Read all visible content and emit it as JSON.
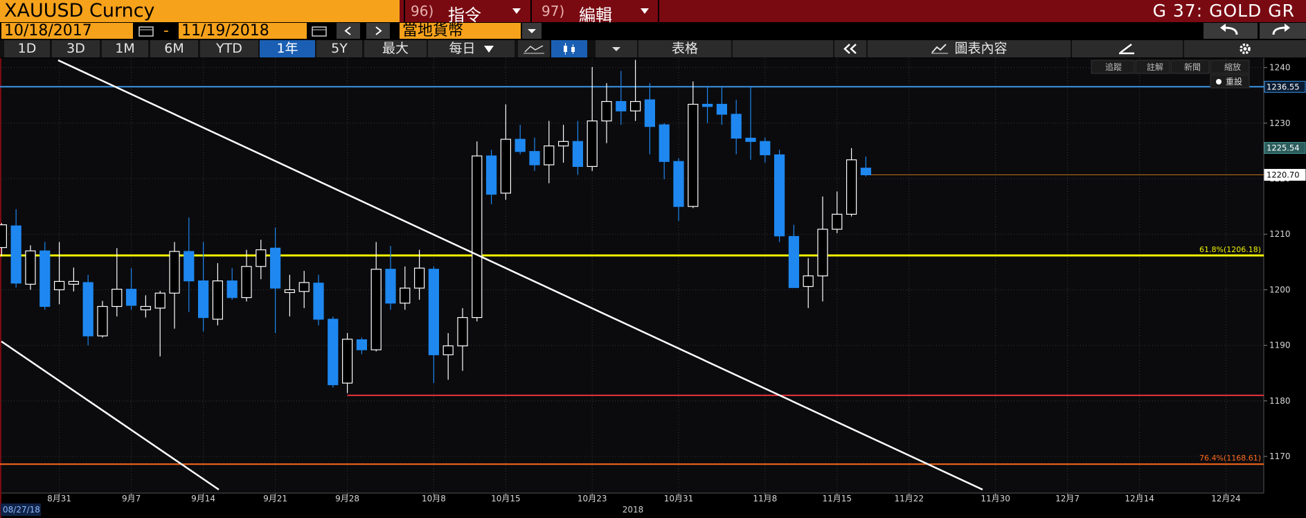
{
  "header": {
    "ticker": "XAUUSD Curncy",
    "menu": [
      {
        "number": "96)",
        "label": "指令"
      },
      {
        "number": "97)",
        "label": "編輯"
      }
    ],
    "title": "G 37: GOLD GR"
  },
  "range": {
    "start": "10/18/2017",
    "separator": "-",
    "end": "11/19/2018",
    "currency": "當地貨幣"
  },
  "periods": [
    "1D",
    "3D",
    "1M",
    "6M",
    "YTD",
    "1年",
    "5Y",
    "最大"
  ],
  "selected_period": 5,
  "frequency": "每日",
  "toolbar": {
    "table": "表格",
    "chart_content": "圖表內容"
  },
  "chart_tools": [
    "追蹤",
    "註解",
    "新聞",
    "縮放"
  ],
  "reset": "重設",
  "chart_data": {
    "type": "candlestick",
    "start_date": "08/27/18",
    "year_label": "2018",
    "categories": [
      null,
      null,
      null,
      null,
      "8月31",
      null,
      null,
      null,
      null,
      "9月7",
      null,
      null,
      null,
      null,
      "9月14",
      null,
      null,
      null,
      null,
      "9月21",
      null,
      null,
      null,
      null,
      "9月28",
      null,
      null,
      null,
      null,
      null,
      "10月8",
      null,
      null,
      null,
      null,
      "10月15",
      null,
      null,
      null,
      null,
      null,
      "10月23",
      null,
      null,
      null,
      null,
      null,
      "10月31",
      null,
      null,
      null,
      null,
      null,
      "11月8",
      null,
      null,
      null,
      null,
      "11月15",
      null,
      null,
      null,
      null,
      "11月22",
      null,
      null,
      null,
      null,
      null,
      "11月30",
      null,
      null,
      null,
      null,
      "12月7",
      null,
      null,
      null,
      null,
      "12月14",
      null,
      null,
      null,
      null,
      null,
      "12月24",
      null,
      null
    ],
    "open": [
      1207.6,
      1211.5,
      1201,
      1207,
      1200,
      1201,
      1201.3,
      1191.7,
      1197,
      1200.1,
      1196.4,
      1196.7,
      1199.4,
      1206.9,
      1201.6,
      1194.7,
      1201.6,
      1198.6,
      1204.2,
      1207.5,
      1199.5,
      1199.7,
      1201.2,
      1194.7,
      1183.2,
      1191,
      1189.2,
      1203.7,
      1197.6,
      1200.3,
      1203.7,
      1188.3,
      1189.9,
      1195,
      1224.1,
      1217.4,
      1227.1,
      1224.9,
      1222.5,
      1225.9,
      1226.7,
      1222.2,
      1230.4,
      1233.9,
      1232.2,
      1234.2,
      1229.7,
      1223.1,
      1215,
      1233.4,
      1233.4,
      1231.6,
      1227.3,
      1226.7,
      1224.3,
      1209.6,
      1200.6,
      1202.5,
      1210.9,
      1213.6,
      1221.9,
      null,
      null,
      null,
      null,
      null,
      null,
      null,
      null,
      null,
      null,
      null,
      null,
      null,
      null,
      null,
      null,
      null,
      null,
      null,
      null,
      null,
      null,
      null,
      null,
      null,
      null,
      null
    ],
    "high": [
      1212,
      1214.5,
      1208,
      1208.6,
      1208.6,
      1204,
      1202.7,
      1198,
      1207.5,
      1203.9,
      1199,
      1199.8,
      1208.6,
      1213,
      1208.6,
      1204.8,
      1203.9,
      1207.2,
      1209,
      1211.2,
      1202.7,
      1203.4,
      1202.7,
      1195.2,
      1192.2,
      1191.4,
      1208.6,
      1207.9,
      1204.2,
      1207.2,
      1204.2,
      1192.2,
      1196.7,
      1226.7,
      1225.2,
      1233.4,
      1229.7,
      1227.4,
      1230.4,
      1229.7,
      1230.4,
      1240.1,
      1237.2,
      1239.4,
      1241.4,
      1237.2,
      1230,
      1223.7,
      1237.5,
      1236.7,
      1236.7,
      1234.2,
      1236.7,
      1227.4,
      1225.2,
      1211.7,
      1205.7,
      1216.8,
      1217.7,
      1225.5,
      1224,
      null,
      null,
      null,
      null,
      null,
      null,
      null,
      null,
      null,
      null,
      null,
      null,
      null,
      null,
      null,
      null,
      null,
      null,
      null,
      null,
      null,
      null,
      null,
      null,
      null,
      null,
      null
    ],
    "low": [
      1206,
      1200.4,
      1200,
      1196.4,
      1197.4,
      1199.7,
      1190,
      1191.4,
      1195.2,
      1196.4,
      1195,
      1188,
      1193,
      1196,
      1192.5,
      1193.6,
      1198.2,
      1197.9,
      1201.9,
      1192.2,
      1195.2,
      1196.7,
      1193.6,
      1182.4,
      1181.4,
      1188.4,
      1188.9,
      1196.4,
      1196.4,
      1198.2,
      1183.2,
      1183.8,
      1185.4,
      1194.3,
      1215.4,
      1216.2,
      1224.4,
      1221.4,
      1219.2,
      1222.9,
      1220.7,
      1221.4,
      1226.4,
      1229.7,
      1230.4,
      1224.4,
      1219.9,
      1212.4,
      1214.7,
      1230,
      1229.7,
      1224.4,
      1223.4,
      1222.9,
      1208.6,
      1200.4,
      1196.7,
      1197.9,
      1210.2,
      1213.2,
      1220.4,
      null,
      null,
      null,
      null,
      null,
      null,
      null,
      null,
      null,
      null,
      null,
      null,
      null,
      null,
      null,
      null,
      null,
      null,
      null,
      null,
      null,
      null,
      null,
      null,
      null,
      null,
      null
    ],
    "close": [
      1211.7,
      1201.2,
      1207,
      1197,
      1201.5,
      1201.5,
      1191.7,
      1197,
      1200.1,
      1197.2,
      1197,
      1199.4,
      1206.9,
      1201.6,
      1195,
      1201.6,
      1198.6,
      1204.2,
      1207.2,
      1200.3,
      1200,
      1201.3,
      1194.7,
      1182.9,
      1191.1,
      1189.2,
      1203.7,
      1197.6,
      1200.3,
      1203.9,
      1188.3,
      1189.9,
      1195,
      1224.1,
      1217.2,
      1227.1,
      1224.9,
      1222.5,
      1225.9,
      1226.7,
      1222.2,
      1230.4,
      1233.9,
      1232.2,
      1233.9,
      1229.4,
      1223.1,
      1215,
      1233.4,
      1233,
      1231.6,
      1227.3,
      1226.7,
      1224.3,
      1209.7,
      1200.4,
      1202.5,
      1210.9,
      1213.6,
      1223.4,
      1220.7,
      null,
      null,
      null,
      null,
      null,
      null,
      null,
      null,
      null,
      null,
      null,
      null,
      null,
      null,
      null,
      null,
      null,
      null,
      null,
      null,
      null,
      null,
      null,
      null,
      null,
      null,
      null
    ],
    "up_color": "#ffffff",
    "down_color": "#1e88f0",
    "ylim": [
      1163.4,
      1241.7
    ],
    "yticks": [
      1170,
      1180,
      1190,
      1200,
      1210,
      1220,
      1230,
      1240
    ],
    "grid": true,
    "levels": [
      {
        "value": 1236.55,
        "color": "#3d95e6"
      },
      {
        "value": 1206.18,
        "label": "61.8%(1206.18)",
        "color": "#f2f200"
      },
      {
        "value": 1181,
        "color": "#e8323c"
      },
      {
        "value": 1168.61,
        "label": "76.4%(1168.61)",
        "color": "#ff6a1a"
      },
      {
        "value": 1220.7,
        "color": "#c8781e"
      }
    ],
    "axis_tags": [
      {
        "value": 1236.55,
        "color": "#3d95e6"
      },
      {
        "value": 1225.54,
        "color": "#4a9a9a"
      },
      {
        "value": 1220.7,
        "label": "1220.70",
        "color": "#ffffff"
      }
    ]
  }
}
